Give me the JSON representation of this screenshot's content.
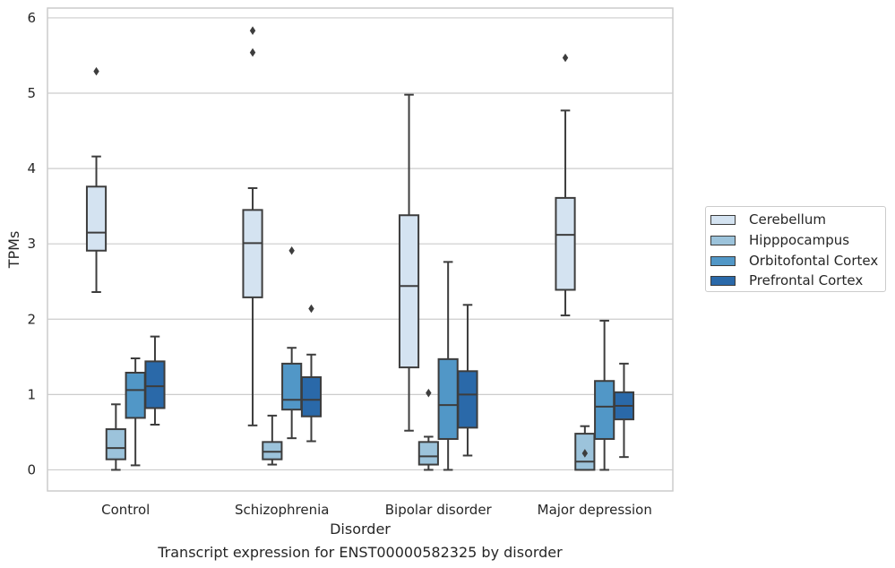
{
  "chart_data": {
    "type": "box",
    "title": "Transcript expression for ENST00000582325 by disorder",
    "xlabel": "Disorder",
    "ylabel": "TPMs",
    "ylim": [
      -0.28,
      6.13
    ],
    "yticks": [
      "0",
      "1",
      "2",
      "3",
      "4",
      "5",
      "6"
    ],
    "grid": "horizontal",
    "legend_position": "right",
    "categories": [
      "Control",
      "Schizophrenia",
      "Bipolar disorder",
      "Major depression"
    ],
    "series": [
      {
        "name": "Cerebellum",
        "color": "#d4e3f1",
        "boxes": [
          {
            "whisker_low": 2.36,
            "q1": 2.91,
            "median": 3.15,
            "q3": 3.76,
            "whisker_high": 4.16,
            "outliers": [
              5.29
            ]
          },
          {
            "whisker_low": 0.59,
            "q1": 2.29,
            "median": 3.01,
            "q3": 3.45,
            "whisker_high": 3.74,
            "outliers": [
              5.54,
              5.83
            ]
          },
          {
            "whisker_low": 0.52,
            "q1": 1.36,
            "median": 2.44,
            "q3": 3.38,
            "whisker_high": 4.98,
            "outliers": []
          },
          {
            "whisker_low": 2.05,
            "q1": 2.39,
            "median": 3.12,
            "q3": 3.61,
            "whisker_high": 4.77,
            "outliers": [
              5.47
            ]
          }
        ]
      },
      {
        "name": "Hipppocampus",
        "color": "#9cc3db",
        "boxes": [
          {
            "whisker_low": 0.0,
            "q1": 0.14,
            "median": 0.29,
            "q3": 0.54,
            "whisker_high": 0.87,
            "outliers": []
          },
          {
            "whisker_low": 0.07,
            "q1": 0.14,
            "median": 0.24,
            "q3": 0.37,
            "whisker_high": 0.72,
            "outliers": []
          },
          {
            "whisker_low": 0.0,
            "q1": 0.07,
            "median": 0.18,
            "q3": 0.37,
            "whisker_high": 0.44,
            "outliers": [
              1.02
            ]
          },
          {
            "whisker_low": 0.0,
            "q1": 0.0,
            "median": 0.11,
            "q3": 0.48,
            "whisker_high": 0.58,
            "outliers": [
              0.22
            ]
          }
        ]
      },
      {
        "name": "Orbitofontal Cortex",
        "color": "#5197c7",
        "boxes": [
          {
            "whisker_low": 0.06,
            "q1": 0.69,
            "median": 1.06,
            "q3": 1.29,
            "whisker_high": 1.48,
            "outliers": []
          },
          {
            "whisker_low": 0.42,
            "q1": 0.8,
            "median": 0.93,
            "q3": 1.41,
            "whisker_high": 1.62,
            "outliers": [
              2.91
            ]
          },
          {
            "whisker_low": 0.0,
            "q1": 0.41,
            "median": 0.86,
            "q3": 1.47,
            "whisker_high": 2.76,
            "outliers": []
          },
          {
            "whisker_low": 0.0,
            "q1": 0.41,
            "median": 0.84,
            "q3": 1.18,
            "whisker_high": 1.98,
            "outliers": []
          }
        ]
      },
      {
        "name": "Prefrontal Cortex",
        "color": "#2a69a9",
        "boxes": [
          {
            "whisker_low": 0.6,
            "q1": 0.82,
            "median": 1.11,
            "q3": 1.44,
            "whisker_high": 1.77,
            "outliers": []
          },
          {
            "whisker_low": 0.38,
            "q1": 0.71,
            "median": 0.93,
            "q3": 1.23,
            "whisker_high": 1.53,
            "outliers": [
              2.14
            ]
          },
          {
            "whisker_low": 0.19,
            "q1": 0.56,
            "median": 1.0,
            "q3": 1.31,
            "whisker_high": 2.19,
            "outliers": []
          },
          {
            "whisker_low": 0.17,
            "q1": 0.67,
            "median": 0.85,
            "q3": 1.03,
            "whisker_high": 1.41,
            "outliers": []
          }
        ]
      }
    ]
  }
}
